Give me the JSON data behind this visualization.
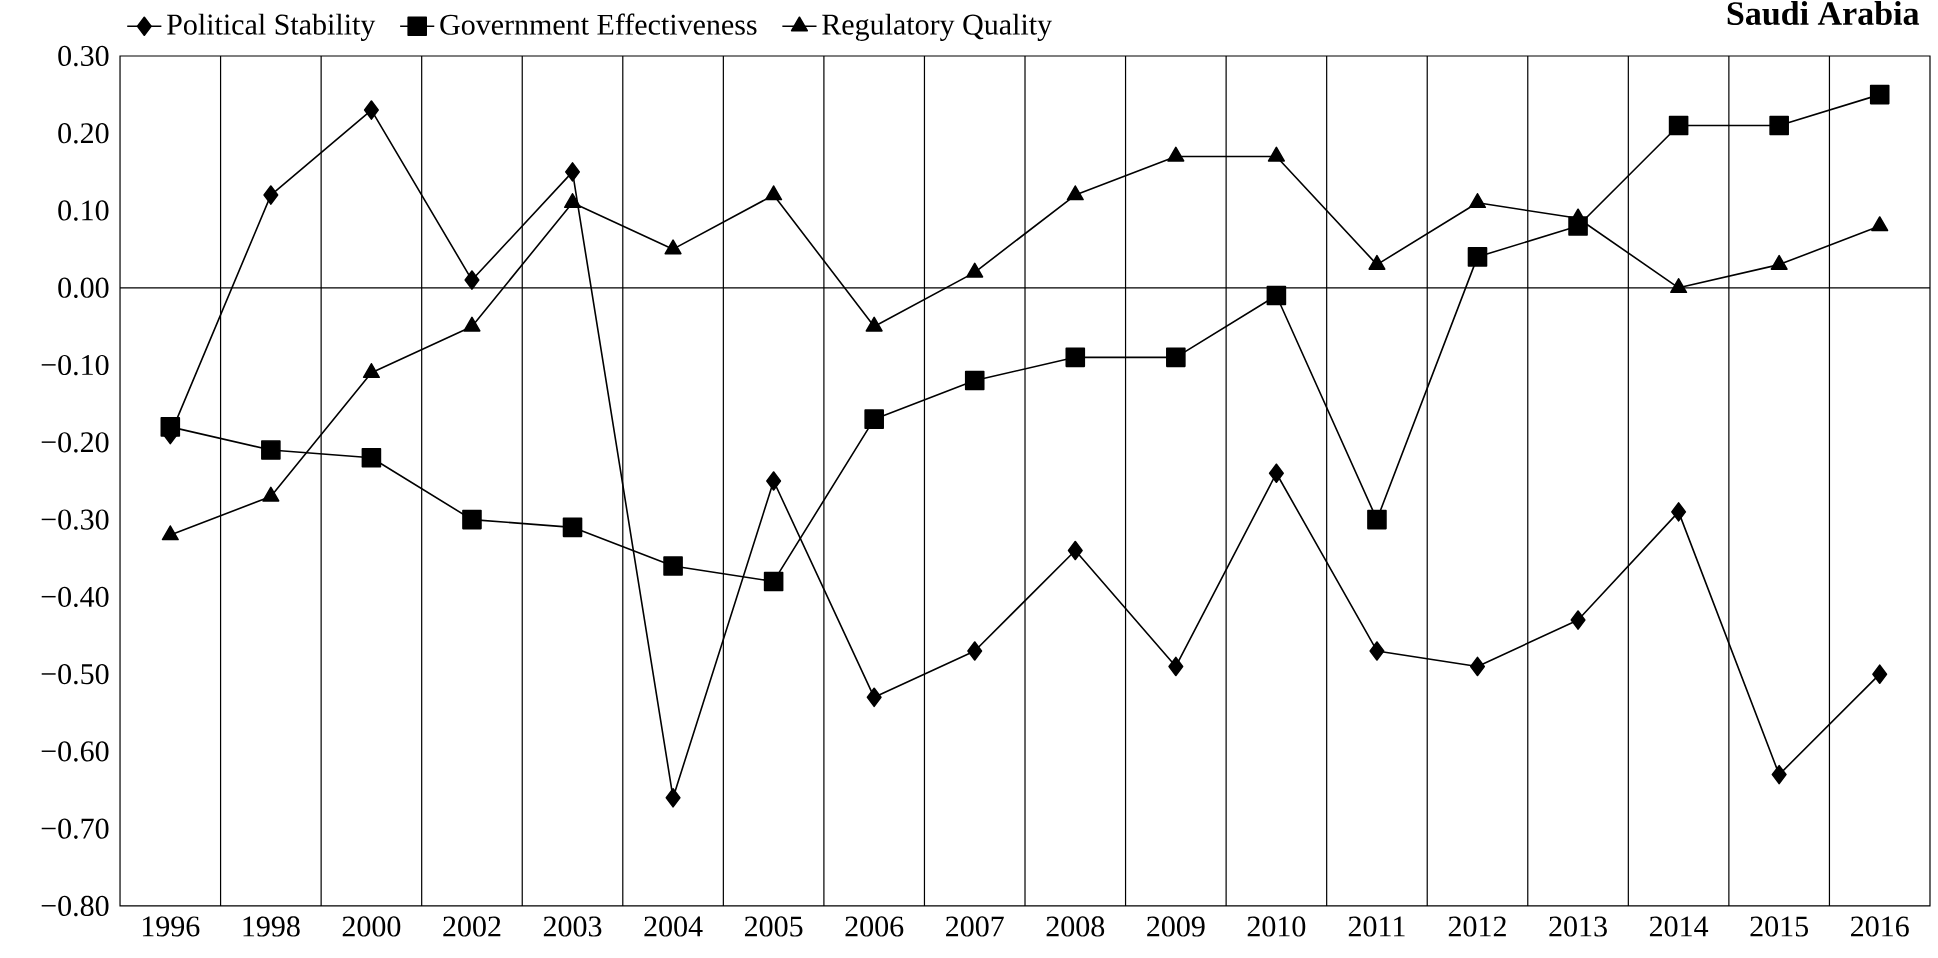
{
  "chart_data": {
    "type": "line",
    "title": "Saudi Arabia",
    "categories": [
      "1996",
      "1998",
      "2000",
      "2002",
      "2003",
      "2004",
      "2005",
      "2006",
      "2007",
      "2008",
      "2009",
      "2010",
      "2011",
      "2012",
      "2013",
      "2014",
      "2015",
      "2016"
    ],
    "series": [
      {
        "name": "Political Stability",
        "color": "#000000",
        "marker": "diamond",
        "values": [
          -0.19,
          0.12,
          0.23,
          0.01,
          0.15,
          -0.66,
          -0.25,
          -0.53,
          -0.47,
          -0.34,
          -0.49,
          -0.24,
          -0.47,
          -0.49,
          -0.43,
          -0.29,
          -0.63,
          -0.5
        ]
      },
      {
        "name": "Government Effectiveness",
        "color": "#000000",
        "marker": "square",
        "values": [
          -0.18,
          -0.21,
          -0.22,
          -0.3,
          -0.31,
          -0.36,
          -0.38,
          -0.17,
          -0.12,
          -0.09,
          -0.09,
          -0.01,
          -0.3,
          0.04,
          0.08,
          0.21,
          0.21,
          0.25
        ]
      },
      {
        "name": "Regulatory Quality",
        "color": "#000000",
        "marker": "triangle",
        "values": [
          -0.32,
          -0.27,
          -0.11,
          -0.05,
          0.11,
          0.05,
          0.12,
          -0.05,
          0.02,
          0.12,
          0.17,
          0.17,
          0.03,
          0.11,
          0.09,
          0.0,
          0.03,
          0.08
        ]
      }
    ],
    "ylim": [
      -0.8,
      0.3
    ],
    "yticks": [
      {
        "value": -0.8,
        "label": "−0.80"
      },
      {
        "value": -0.7,
        "label": "−0.70"
      },
      {
        "value": -0.6,
        "label": "−0.60"
      },
      {
        "value": -0.5,
        "label": "−0.50"
      },
      {
        "value": -0.4,
        "label": "−0.40"
      },
      {
        "value": -0.3,
        "label": "−0.30"
      },
      {
        "value": -0.2,
        "label": "−0.20"
      },
      {
        "value": -0.1,
        "label": "−0.10"
      },
      {
        "value": 0,
        "label": "0.00"
      },
      {
        "value": 0.1,
        "label": "0.10"
      },
      {
        "value": 0.2,
        "label": "0.20"
      },
      {
        "value": 0.3,
        "label": "0.30"
      }
    ],
    "ref_lines": [
      {
        "axis": "y",
        "value": 0
      }
    ],
    "grid": "x",
    "legend": "top left",
    "line_style": "solid"
  }
}
